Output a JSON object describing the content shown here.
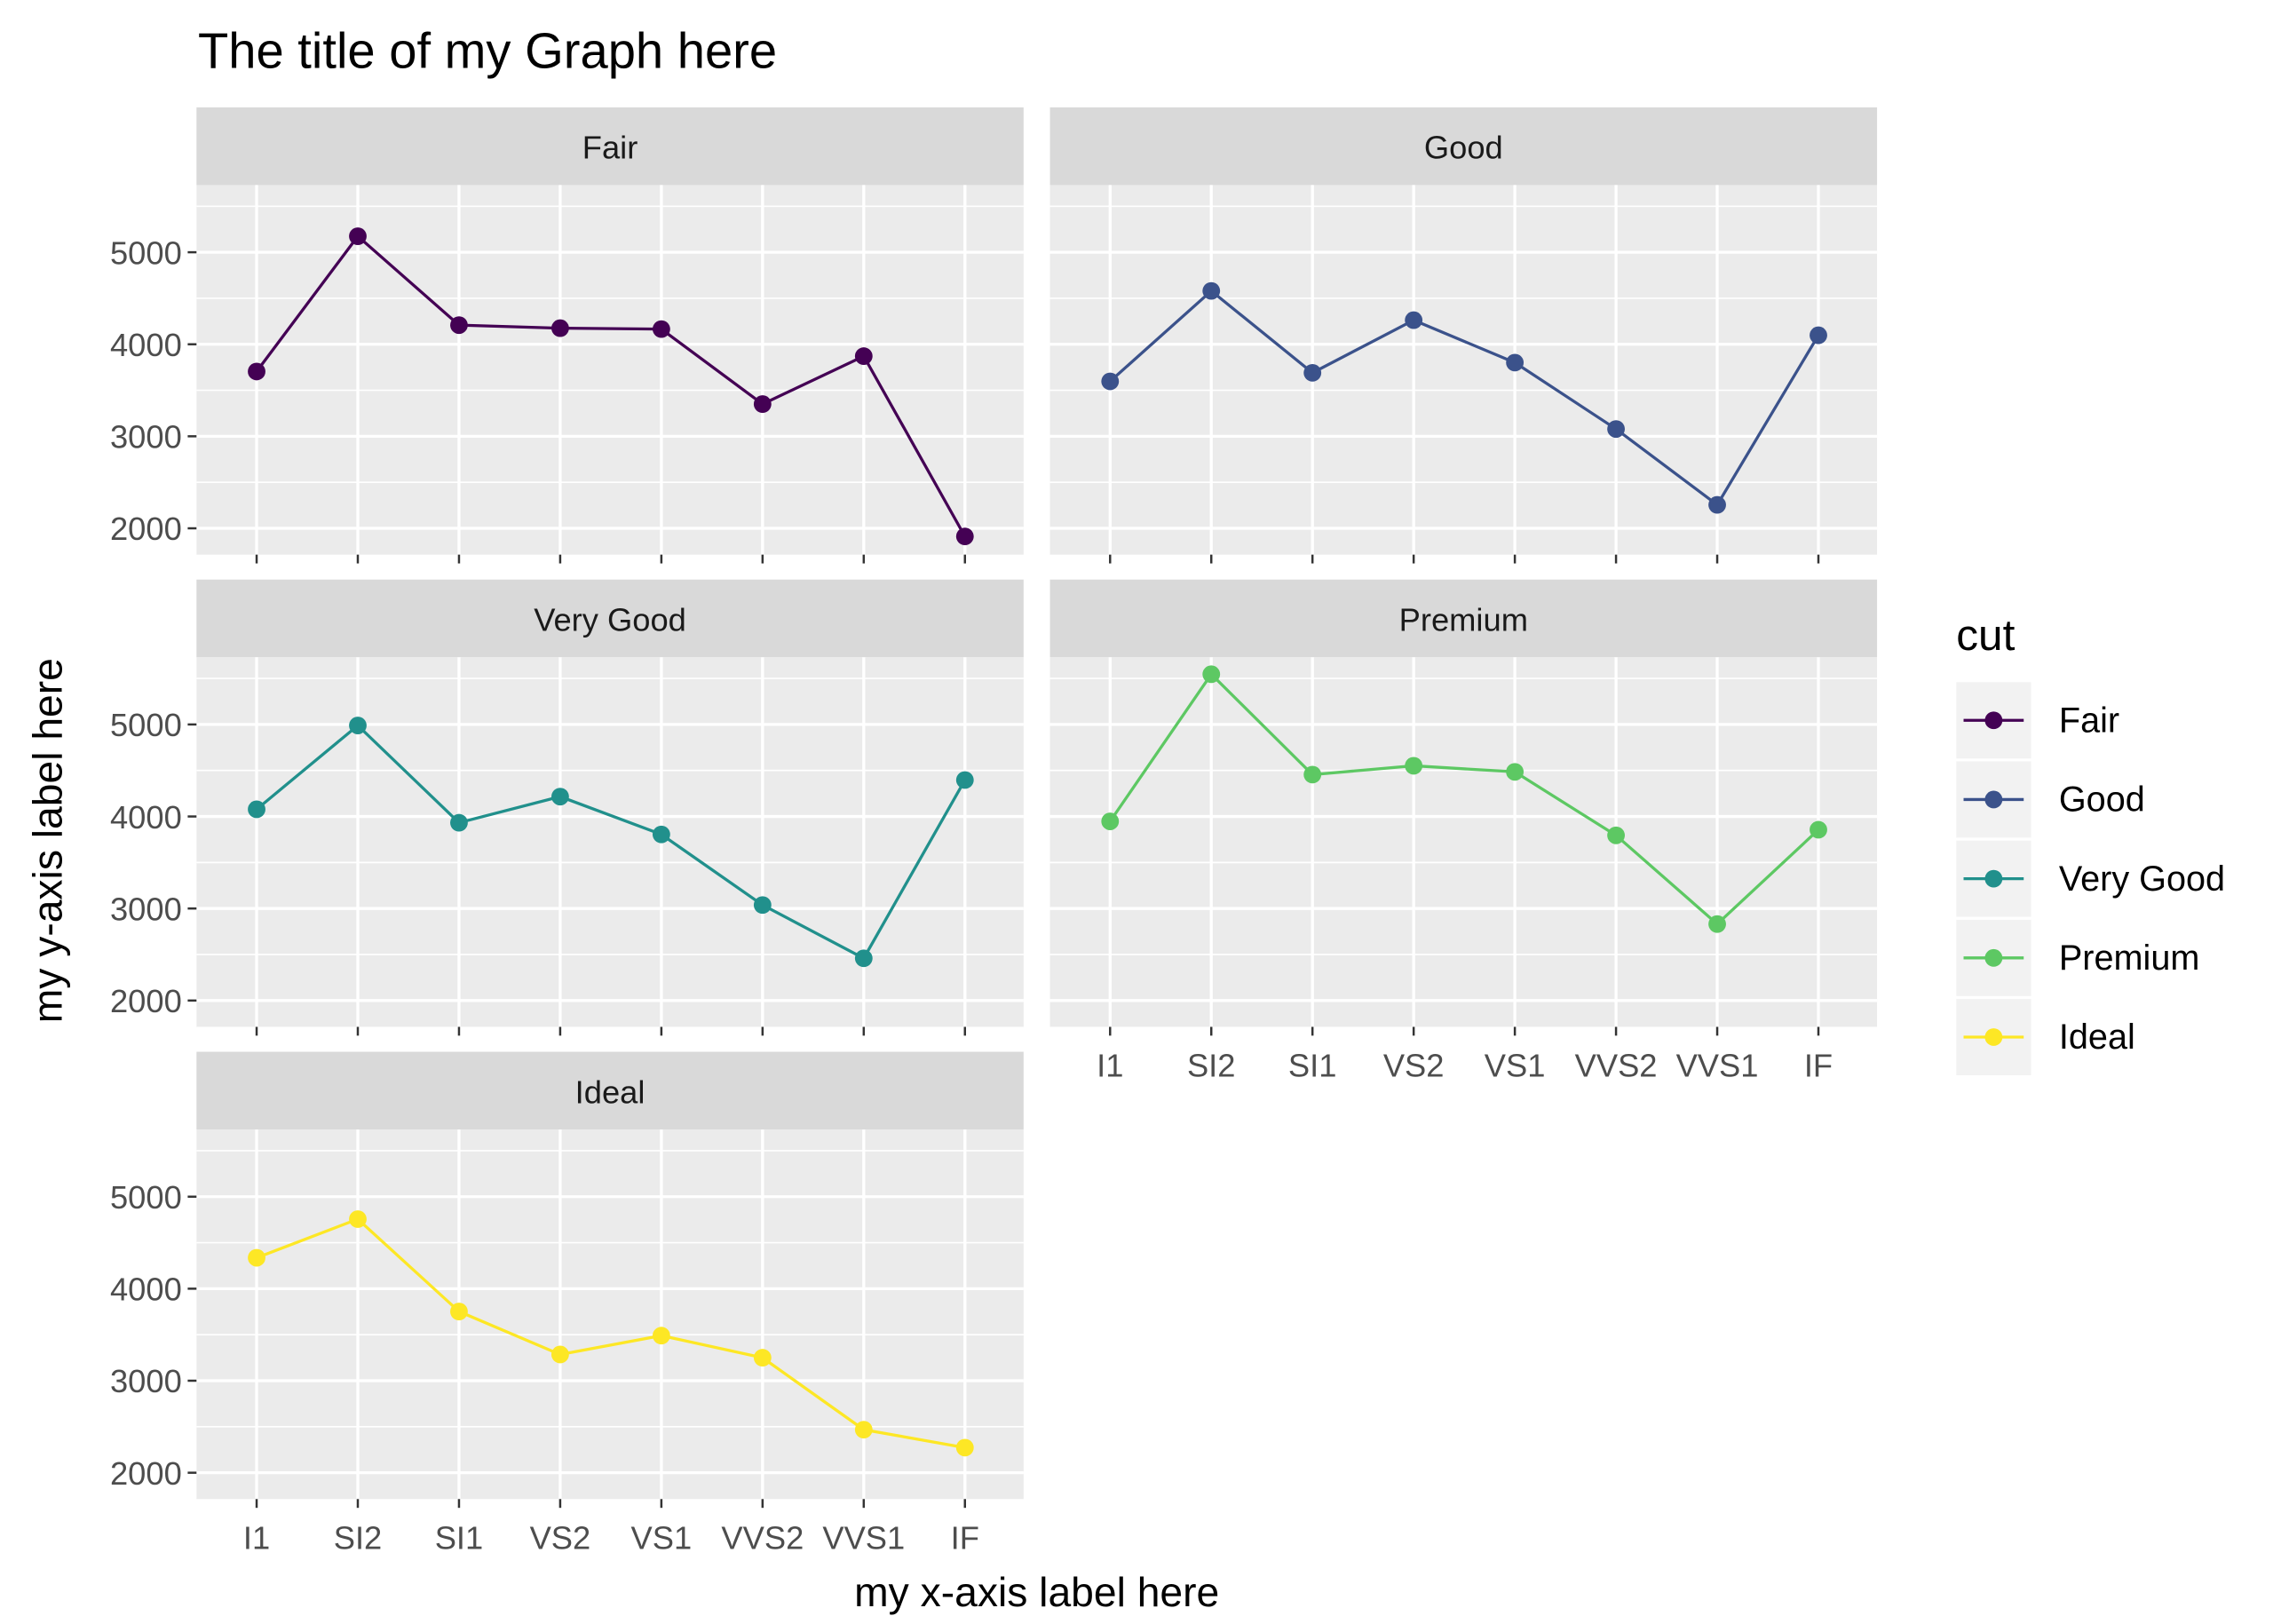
{
  "chart_data": {
    "type": "line",
    "title": "The title of my Graph here",
    "xlabel": "my x-axis label here",
    "ylabel": "my y-axis label here",
    "categories": [
      "I1",
      "SI2",
      "SI1",
      "VS2",
      "VS1",
      "VVS2",
      "VVS1",
      "IF"
    ],
    "y_ticks": [
      2000,
      3000,
      4000,
      5000
    ],
    "ylim": [
      1714,
      5730
    ],
    "grid": true,
    "facet_by": "cut",
    "legend": {
      "title": "cut",
      "placement": "right"
    },
    "series": [
      {
        "name": "Fair",
        "color": "#440154",
        "values": [
          3704,
          5174,
          4208,
          4175,
          4165,
          3350,
          3871,
          1912
        ]
      },
      {
        "name": "Good",
        "color": "#3B528B",
        "values": [
          3597,
          4580,
          3690,
          4262,
          3801,
          3079,
          2255,
          4098
        ]
      },
      {
        "name": "Very Good",
        "color": "#21908C",
        "values": [
          4078,
          4989,
          3932,
          4216,
          3805,
          3038,
          2459,
          4396
        ]
      },
      {
        "name": "Premium",
        "color": "#5DC863",
        "values": [
          3947,
          5546,
          4455,
          4551,
          4485,
          3795,
          2831,
          3856
        ]
      },
      {
        "name": "Ideal",
        "color": "#FDE725",
        "values": [
          4336,
          4756,
          3752,
          3285,
          3490,
          3250,
          2468,
          2273
        ]
      }
    ]
  }
}
